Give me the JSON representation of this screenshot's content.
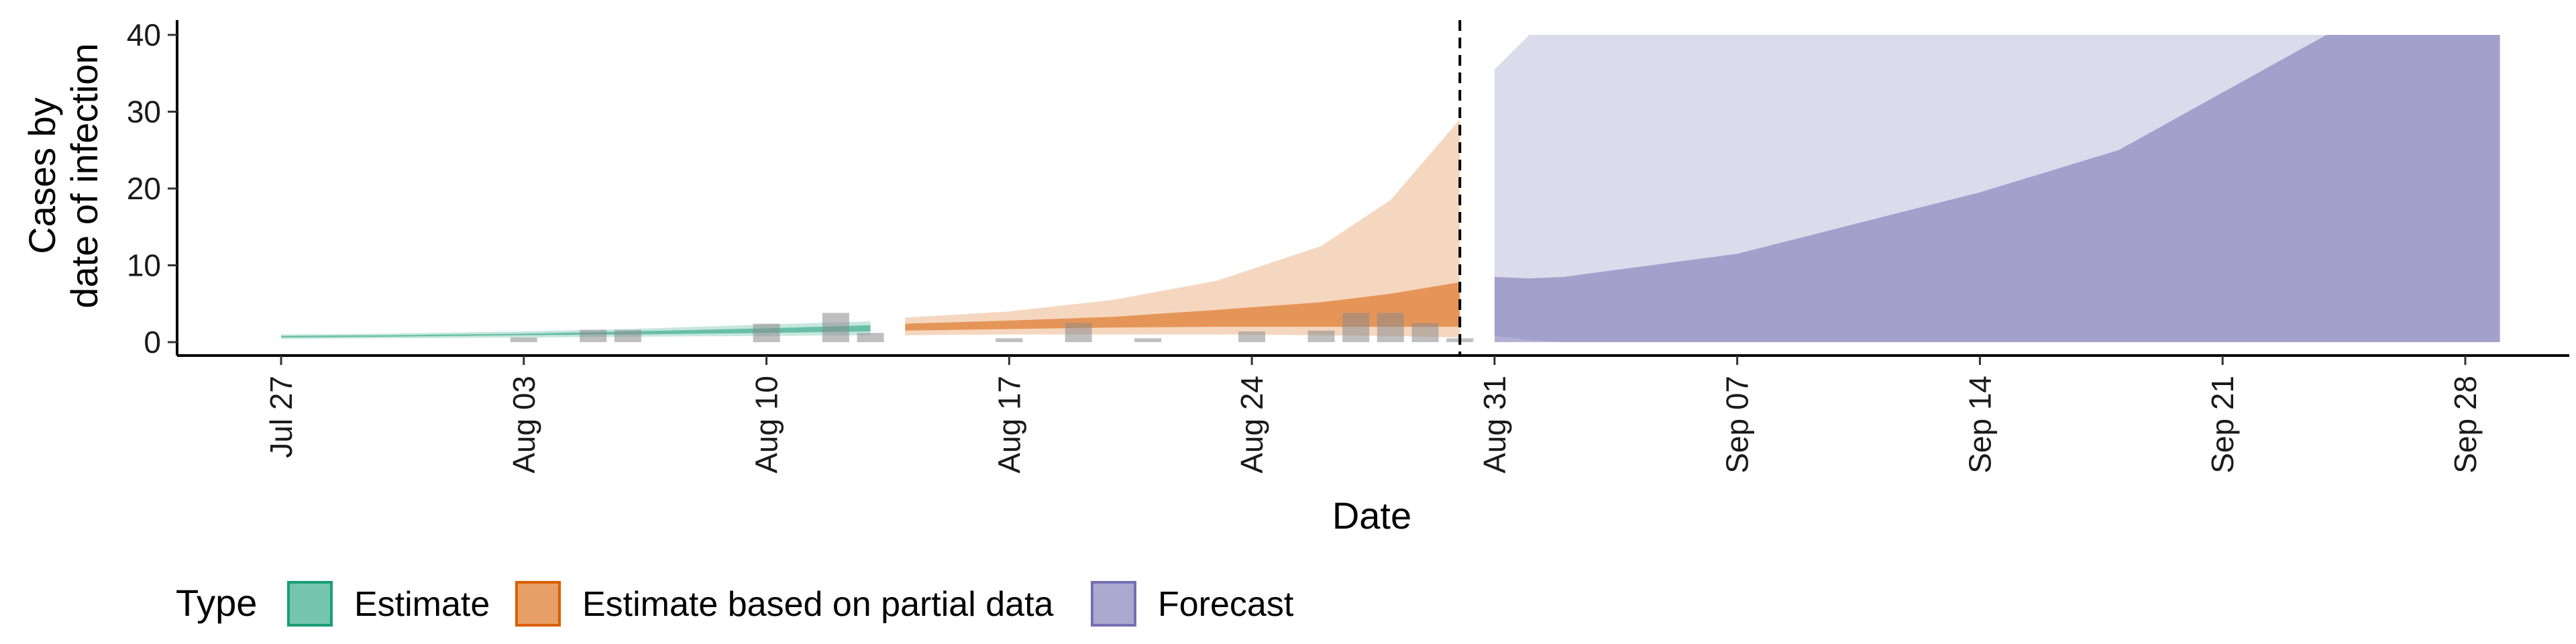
{
  "chart_data": {
    "type": "area",
    "xlabel": "Date",
    "ylabel_line1": "Cases by",
    "ylabel_line2": "date of infection",
    "ylim": [
      0,
      40
    ],
    "yticks": [
      0,
      10,
      20,
      30,
      40
    ],
    "x_range": [
      "2020-07-24",
      "2020-10-01"
    ],
    "xticks": [
      {
        "date": "2020-07-27",
        "label": "Jul 27"
      },
      {
        "date": "2020-08-03",
        "label": "Aug 03"
      },
      {
        "date": "2020-08-10",
        "label": "Aug 10"
      },
      {
        "date": "2020-08-17",
        "label": "Aug 17"
      },
      {
        "date": "2020-08-24",
        "label": "Aug 24"
      },
      {
        "date": "2020-08-31",
        "label": "Aug 31"
      },
      {
        "date": "2020-09-07",
        "label": "Sep 07"
      },
      {
        "date": "2020-09-14",
        "label": "Sep 14"
      },
      {
        "date": "2020-09-21",
        "label": "Sep 21"
      },
      {
        "date": "2020-09-28",
        "label": "Sep 28"
      }
    ],
    "vline_date": "2020-08-30",
    "grid": false,
    "legend_position": "bottom-left",
    "legend_title": "Type",
    "series": [
      {
        "name": "Estimate",
        "color": "#1b9e77",
        "points": [
          {
            "date": "2020-07-27",
            "outer_lo": 0.4,
            "outer_hi": 1.0,
            "inner_lo": 0.6,
            "inner_hi": 0.8
          },
          {
            "date": "2020-07-30",
            "outer_lo": 0.5,
            "outer_hi": 1.1,
            "inner_lo": 0.7,
            "inner_hi": 0.9
          },
          {
            "date": "2020-08-03",
            "outer_lo": 0.6,
            "outer_hi": 1.4,
            "inner_lo": 0.9,
            "inner_hi": 1.1
          },
          {
            "date": "2020-08-06",
            "outer_lo": 0.7,
            "outer_hi": 1.7,
            "inner_lo": 1.0,
            "inner_hi": 1.4
          },
          {
            "date": "2020-08-10",
            "outer_lo": 0.8,
            "outer_hi": 2.3,
            "inner_lo": 1.2,
            "inner_hi": 1.8
          },
          {
            "date": "2020-08-13",
            "outer_lo": 0.9,
            "outer_hi": 2.7,
            "inner_lo": 1.4,
            "inner_hi": 2.2
          }
        ]
      },
      {
        "name": "Estimate based on partial data",
        "color": "#d95f02",
        "points": [
          {
            "date": "2020-08-14",
            "outer_lo": 0.9,
            "outer_hi": 3.2,
            "inner_lo": 1.5,
            "inner_hi": 2.4
          },
          {
            "date": "2020-08-17",
            "outer_lo": 1.0,
            "outer_hi": 4.0,
            "inner_lo": 1.7,
            "inner_hi": 2.8
          },
          {
            "date": "2020-08-20",
            "outer_lo": 1.0,
            "outer_hi": 5.5,
            "inner_lo": 1.9,
            "inner_hi": 3.3
          },
          {
            "date": "2020-08-23",
            "outer_lo": 1.0,
            "outer_hi": 8.0,
            "inner_lo": 2.0,
            "inner_hi": 4.2
          },
          {
            "date": "2020-08-26",
            "outer_lo": 0.9,
            "outer_hi": 12.5,
            "inner_lo": 2.0,
            "inner_hi": 5.2
          },
          {
            "date": "2020-08-28",
            "outer_lo": 0.8,
            "outer_hi": 18.5,
            "inner_lo": 2.0,
            "inner_hi": 6.3
          },
          {
            "date": "2020-08-30",
            "outer_lo": 0.6,
            "outer_hi": 29.0,
            "inner_lo": 2.0,
            "inner_hi": 7.8
          }
        ]
      },
      {
        "name": "Forecast",
        "color": "#7570b3",
        "points": [
          {
            "date": "2020-08-31",
            "outer_lo": 0.8,
            "outer_hi": 35.5,
            "inner_lo": 0,
            "inner_hi": 8.5
          },
          {
            "date": "2020-09-01",
            "outer_lo": 0.3,
            "outer_hi": 40,
            "inner_lo": 0,
            "inner_hi": 8.3
          },
          {
            "date": "2020-09-02",
            "outer_lo": 0,
            "outer_hi": 40,
            "inner_lo": 0,
            "inner_hi": 8.5
          },
          {
            "date": "2020-09-07",
            "outer_lo": 0,
            "outer_hi": 40,
            "inner_lo": 0,
            "inner_hi": 11.5
          },
          {
            "date": "2020-09-14",
            "outer_lo": 0,
            "outer_hi": 40,
            "inner_lo": 0,
            "inner_hi": 19.5
          },
          {
            "date": "2020-09-18",
            "outer_lo": 0,
            "outer_hi": 40,
            "inner_lo": 0,
            "inner_hi": 25.0
          },
          {
            "date": "2020-09-21",
            "outer_lo": 0,
            "outer_hi": 40,
            "inner_lo": 0,
            "inner_hi": 32.5
          },
          {
            "date": "2020-09-24",
            "outer_lo": 0,
            "outer_hi": 40,
            "inner_lo": 0,
            "inner_hi": 40
          },
          {
            "date": "2020-09-29",
            "outer_lo": 0,
            "outer_hi": 40,
            "inner_lo": 0,
            "inner_hi": 40
          }
        ]
      }
    ],
    "observed_bars": [
      {
        "date": "2020-08-03",
        "value": 0.6
      },
      {
        "date": "2020-08-05",
        "value": 1.6
      },
      {
        "date": "2020-08-06",
        "value": 1.6
      },
      {
        "date": "2020-08-10",
        "value": 2.4
      },
      {
        "date": "2020-08-12",
        "value": 3.8
      },
      {
        "date": "2020-08-13",
        "value": 1.2
      },
      {
        "date": "2020-08-17",
        "value": 0.5
      },
      {
        "date": "2020-08-19",
        "value": 2.5
      },
      {
        "date": "2020-08-21",
        "value": 0.5
      },
      {
        "date": "2020-08-24",
        "value": 1.4
      },
      {
        "date": "2020-08-26",
        "value": 1.5
      },
      {
        "date": "2020-08-27",
        "value": 3.8
      },
      {
        "date": "2020-08-28",
        "value": 3.8
      },
      {
        "date": "2020-08-29",
        "value": 2.5
      },
      {
        "date": "2020-08-30",
        "value": 0.5
      }
    ]
  }
}
